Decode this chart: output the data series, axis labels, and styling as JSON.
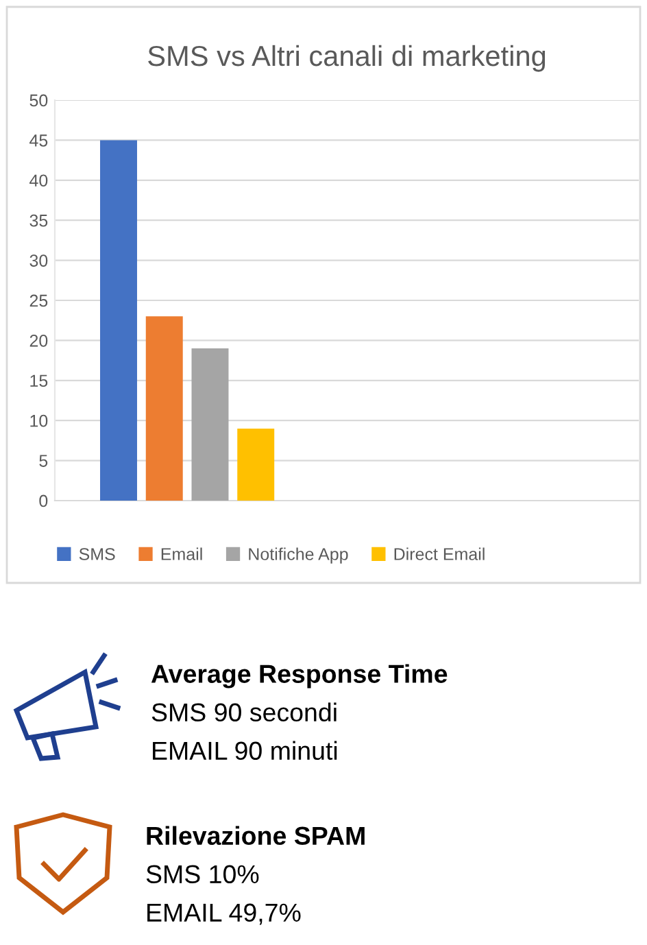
{
  "chart_data": {
    "type": "bar",
    "title": "SMS vs Altri canali di marketing",
    "categories": [
      null
    ],
    "series": [
      {
        "name": "SMS",
        "color": "#4472c4",
        "values": [
          45
        ]
      },
      {
        "name": "Email",
        "color": "#ed7d31",
        "values": [
          23
        ]
      },
      {
        "name": "Notifiche App",
        "color": "#a5a5a5",
        "values": [
          19
        ]
      },
      {
        "name": "Direct Email",
        "color": "#ffc000",
        "values": [
          9
        ]
      }
    ],
    "ylim": [
      0,
      50
    ],
    "yticks": [
      0,
      5,
      10,
      15,
      20,
      25,
      30,
      35,
      40,
      45,
      50
    ],
    "grid": "y",
    "legend": "bottom",
    "annotations": [
      "Average Response Time",
      "SMS 90 secondi",
      "EMAIL 90 minuti",
      "Rilevazione SPAM",
      "SMS 10%",
      "EMAIL 49,7%"
    ]
  }
}
